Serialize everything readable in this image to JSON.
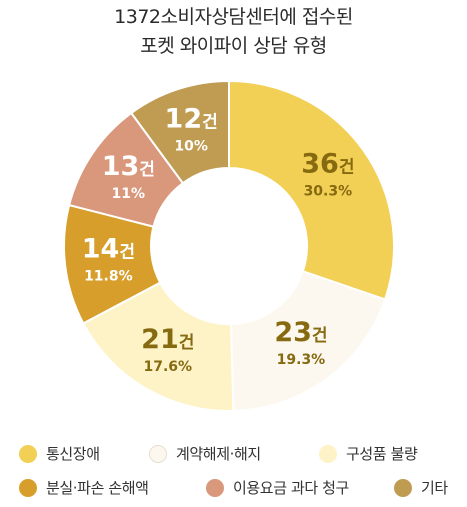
{
  "chart_data": {
    "type": "pie",
    "title": [
      "1372소비자상담센터에 접수된",
      "포켓 와이파이 상담 유형"
    ],
    "categories": [
      "통신장애",
      "계약해제·해지",
      "구성품 불량",
      "분실·파손 손해액",
      "이용요금 과다 청구",
      "기타"
    ],
    "series": [
      {
        "values": [
          36,
          23,
          21,
          14,
          13,
          12
        ],
        "value_labels": [
          "36건",
          "23건",
          "21건",
          "14건",
          "13건",
          "12건"
        ],
        "percent_labels": [
          "30.3%",
          "19.3%",
          "17.6%",
          "11.8%",
          "11%",
          "10%"
        ]
      }
    ],
    "colors": [
      "#F2CF55",
      "#FCF8EF",
      "#FDF3C7",
      "#D79E2B",
      "#D9977C",
      "#BF9C51"
    ],
    "label_colors": [
      "#856A10",
      "#856A10",
      "#856A10",
      "#ffffff",
      "#ffffff",
      "#ffffff"
    ],
    "donut": true,
    "legend_position": "bottom"
  }
}
